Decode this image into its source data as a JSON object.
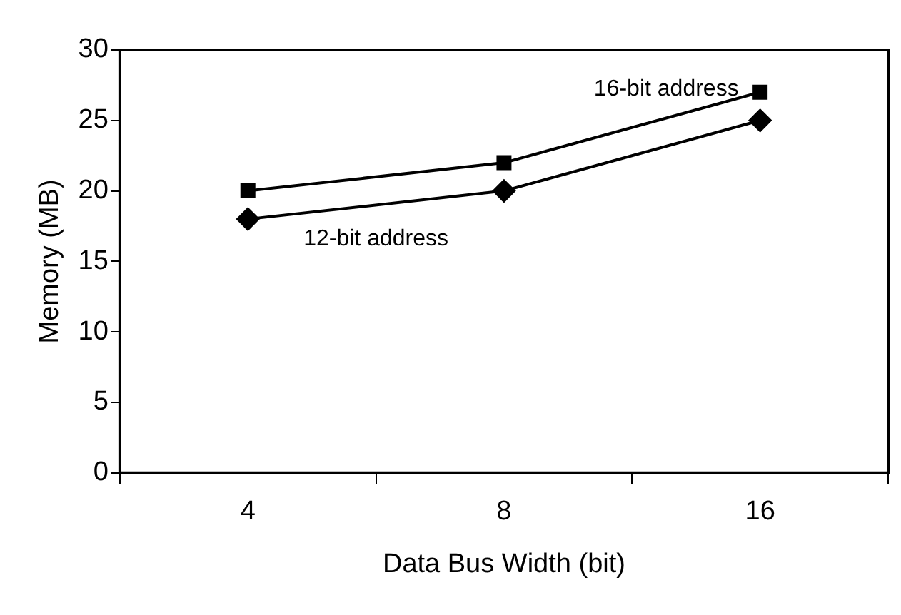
{
  "chart_data": {
    "type": "line",
    "xlabel": "Data Bus Width (bit)",
    "ylabel": "Memory (MB)",
    "categories": [
      "4",
      "8",
      "16"
    ],
    "series": [
      {
        "name": "16-bit address",
        "color": "#000000",
        "marker": "square",
        "values": [
          20,
          22,
          27
        ]
      },
      {
        "name": "12-bit address",
        "color": "#000000",
        "marker": "diamond",
        "values": [
          18,
          20,
          25
        ]
      }
    ],
    "ylim": [
      0,
      30
    ],
    "yticks": [
      0,
      5,
      10,
      15,
      20,
      25,
      30
    ],
    "grid": false,
    "legend": false,
    "line_style": "solid"
  }
}
